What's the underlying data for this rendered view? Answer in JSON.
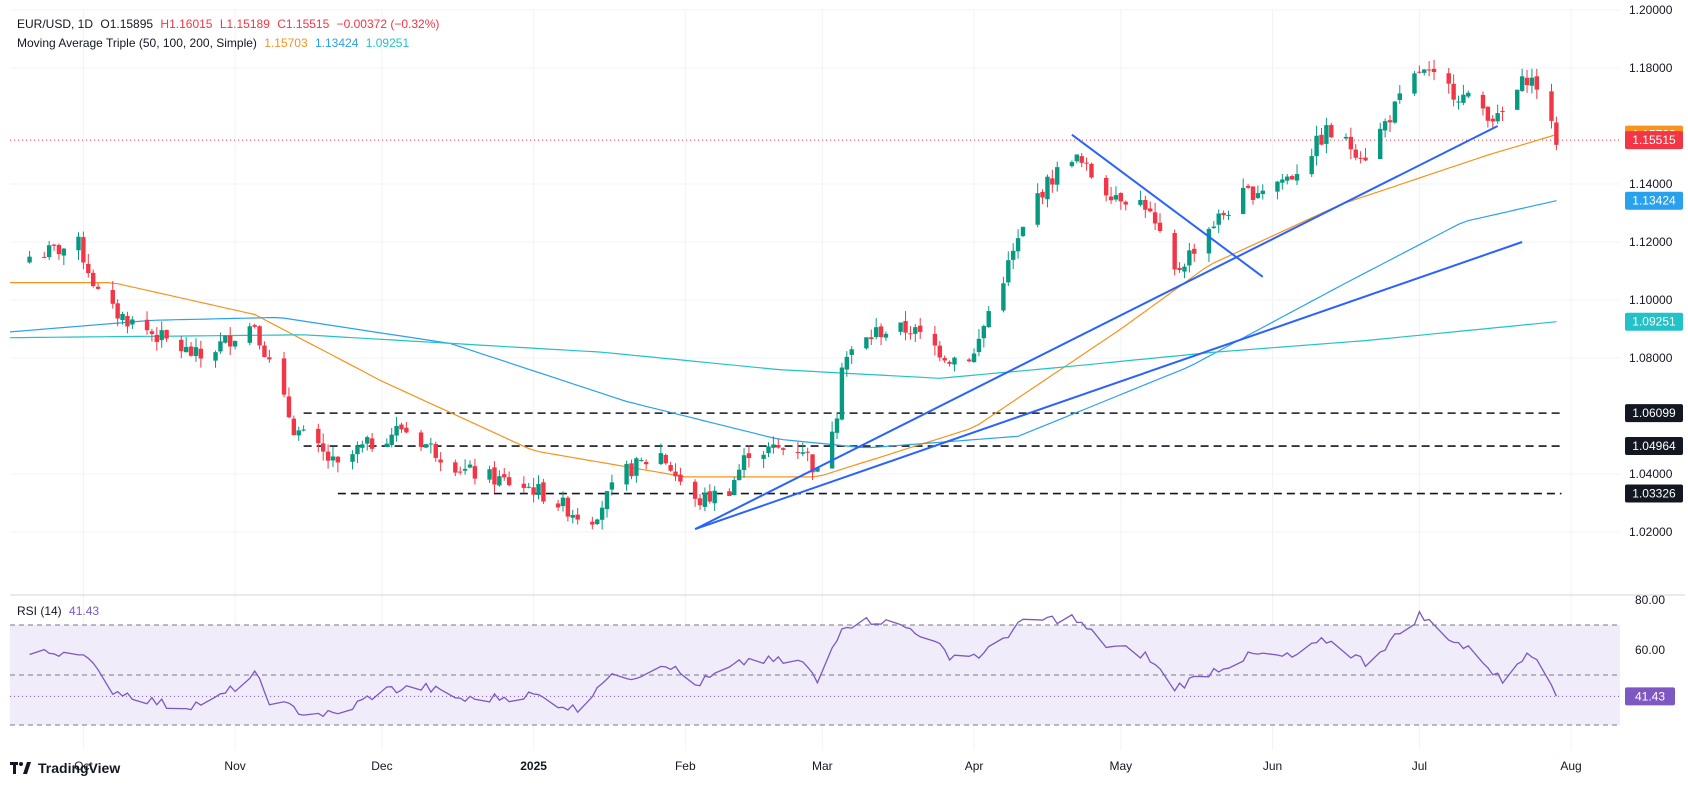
{
  "header": {
    "symbol": "EUR/USD, 1D",
    "open": "O1.15895",
    "high": "H1.16015",
    "low": "L1.15189",
    "close": "C1.15515",
    "change": "−0.00372 (−0.32%)",
    "ma_label": "Moving Average Triple (50, 100, 200, Simple)",
    "ma50": "1.15703",
    "ma100": "1.13424",
    "ma200": "1.09251",
    "rsi_label": "RSI (14)",
    "rsi_value": "41.43"
  },
  "branding": {
    "logo_text": "TradingView"
  },
  "colors": {
    "up": "#089981",
    "down": "#f23645",
    "ma50": "#f7931e",
    "ma100": "#2aa1ee",
    "ma200": "#22c2c8",
    "trendline": "#2962ff",
    "rsi": "#7e57c2",
    "rsi_band": "#f0ecfa"
  },
  "chart_data": {
    "type": "candlestick",
    "x_ticks": [
      "Oct",
      "Nov",
      "Dec",
      "2025",
      "Feb",
      "Mar",
      "Apr",
      "May",
      "Jun",
      "Jul",
      "Aug"
    ],
    "y_ticks": [
      "1.20000",
      "1.18000",
      "1.14000",
      "1.12000",
      "1.10000",
      "1.08000",
      "1.04000",
      "1.02000"
    ],
    "ylim": [
      1.0,
      1.2
    ],
    "price_tags": [
      {
        "label": "1.15703",
        "value": 1.15703,
        "color": "#f7931e"
      },
      {
        "label": "1.15515",
        "value": 1.15515,
        "color": "#f23645"
      },
      {
        "label": "1.13424",
        "value": 1.13424,
        "color": "#2aa1ee"
      },
      {
        "label": "1.09251",
        "value": 1.09251,
        "color": "#22c2c8"
      },
      {
        "label": "1.06099",
        "value": 1.06099,
        "color": "#131722"
      },
      {
        "label": "1.04964",
        "value": 1.04964,
        "color": "#131722"
      },
      {
        "label": "1.03326",
        "value": 1.03326,
        "color": "#131722"
      }
    ],
    "horizontal_levels": [
      {
        "value": 1.06099,
        "from": "2024-11-15",
        "to": "2025-07-28"
      },
      {
        "value": 1.04964,
        "from": "2024-11-15",
        "to": "2025-07-28"
      },
      {
        "value": 1.03326,
        "from": "2024-11-22",
        "to": "2025-07-28"
      }
    ],
    "trendlines": [
      {
        "from": [
          "2025-02-03",
          1.021
        ],
        "to": [
          "2025-07-17",
          1.16
        ]
      },
      {
        "from": [
          "2025-02-03",
          1.021
        ],
        "to": [
          "2025-07-22",
          1.12
        ]
      },
      {
        "from": [
          "2025-04-21",
          1.157
        ],
        "to": [
          "2025-05-30",
          1.108
        ]
      }
    ],
    "anchors": [
      [
        "2024-09-20",
        1.115
      ],
      [
        "2024-09-30",
        1.119
      ],
      [
        "2024-10-05",
        1.098
      ],
      [
        "2024-10-20",
        1.084
      ],
      [
        "2024-10-25",
        1.08
      ],
      [
        "2024-11-01",
        1.088
      ],
      [
        "2024-11-05",
        1.092
      ],
      [
        "2024-11-08",
        1.078
      ],
      [
        "2024-11-13",
        1.056
      ],
      [
        "2024-11-22",
        1.042
      ],
      [
        "2024-11-26",
        1.048
      ],
      [
        "2024-12-05",
        1.056
      ],
      [
        "2024-12-18",
        1.041
      ],
      [
        "2025-01-01",
        1.035
      ],
      [
        "2025-01-10",
        1.026
      ],
      [
        "2025-01-13",
        1.025
      ],
      [
        "2025-01-20",
        1.041
      ],
      [
        "2025-01-27",
        1.047
      ],
      [
        "2025-02-03",
        1.03
      ],
      [
        "2025-02-10",
        1.035
      ],
      [
        "2025-02-14",
        1.048
      ],
      [
        "2025-02-25",
        1.049
      ],
      [
        "2025-02-28",
        1.04
      ],
      [
        "2025-03-04",
        1.062
      ],
      [
        "2025-03-05",
        1.079
      ],
      [
        "2025-03-12",
        1.089
      ],
      [
        "2025-03-19",
        1.09
      ],
      [
        "2025-03-27",
        1.08
      ],
      [
        "2025-04-01",
        1.081
      ],
      [
        "2025-04-04",
        1.096
      ],
      [
        "2025-04-10",
        1.12
      ],
      [
        "2025-04-14",
        1.136
      ],
      [
        "2025-04-21",
        1.15
      ],
      [
        "2025-04-28",
        1.138
      ],
      [
        "2025-05-06",
        1.133
      ],
      [
        "2025-05-12",
        1.109
      ],
      [
        "2025-05-19",
        1.125
      ],
      [
        "2025-05-26",
        1.136
      ],
      [
        "2025-06-05",
        1.143
      ],
      [
        "2025-06-12",
        1.158
      ],
      [
        "2025-06-20",
        1.15
      ],
      [
        "2025-06-24",
        1.161
      ],
      [
        "2025-07-01",
        1.179
      ],
      [
        "2025-07-08",
        1.172
      ],
      [
        "2025-07-14",
        1.166
      ],
      [
        "2025-07-17",
        1.162
      ],
      [
        "2025-07-23",
        1.177
      ],
      [
        "2025-07-25",
        1.174
      ],
      [
        "2025-07-28",
        1.159
      ],
      [
        "2025-07-29",
        1.1552
      ]
    ],
    "rsi": {
      "ylim": [
        20,
        80
      ],
      "y_ticks": [
        "80.00",
        "60.00"
      ],
      "levels": [
        70,
        50,
        30
      ],
      "last": 41.43,
      "anchors": [
        [
          "2024-09-20",
          58
        ],
        [
          "2024-09-30",
          60
        ],
        [
          "2024-10-07",
          44
        ],
        [
          "2024-10-20",
          37
        ],
        [
          "2024-10-28",
          40
        ],
        [
          "2024-11-05",
          50
        ],
        [
          "2024-11-08",
          40
        ],
        [
          "2024-11-15",
          35
        ],
        [
          "2024-11-22",
          34
        ],
        [
          "2024-12-01",
          44
        ],
        [
          "2024-12-10",
          45
        ],
        [
          "2024-12-18",
          40
        ],
        [
          "2025-01-01",
          42
        ],
        [
          "2025-01-10",
          36
        ],
        [
          "2025-01-15",
          48
        ],
        [
          "2025-01-22",
          50
        ],
        [
          "2025-01-28",
          55
        ],
        [
          "2025-02-03",
          46
        ],
        [
          "2025-02-14",
          56
        ],
        [
          "2025-02-25",
          55
        ],
        [
          "2025-02-28",
          47
        ],
        [
          "2025-03-05",
          70
        ],
        [
          "2025-03-12",
          72
        ],
        [
          "2025-03-20",
          68
        ],
        [
          "2025-03-27",
          58
        ],
        [
          "2025-04-03",
          58
        ],
        [
          "2025-04-10",
          70
        ],
        [
          "2025-04-15",
          72
        ],
        [
          "2025-04-21",
          73
        ],
        [
          "2025-04-28",
          62
        ],
        [
          "2025-05-06",
          58
        ],
        [
          "2025-05-12",
          45
        ],
        [
          "2025-05-20",
          52
        ],
        [
          "2025-05-28",
          58
        ],
        [
          "2025-06-05",
          57
        ],
        [
          "2025-06-12",
          64
        ],
        [
          "2025-06-20",
          55
        ],
        [
          "2025-06-26",
          65
        ],
        [
          "2025-07-01",
          74
        ],
        [
          "2025-07-08",
          64
        ],
        [
          "2025-07-14",
          56
        ],
        [
          "2025-07-18",
          47
        ],
        [
          "2025-07-23",
          60
        ],
        [
          "2025-07-25",
          58
        ],
        [
          "2025-07-28",
          44
        ],
        [
          "2025-07-29",
          41.43
        ]
      ]
    }
  }
}
